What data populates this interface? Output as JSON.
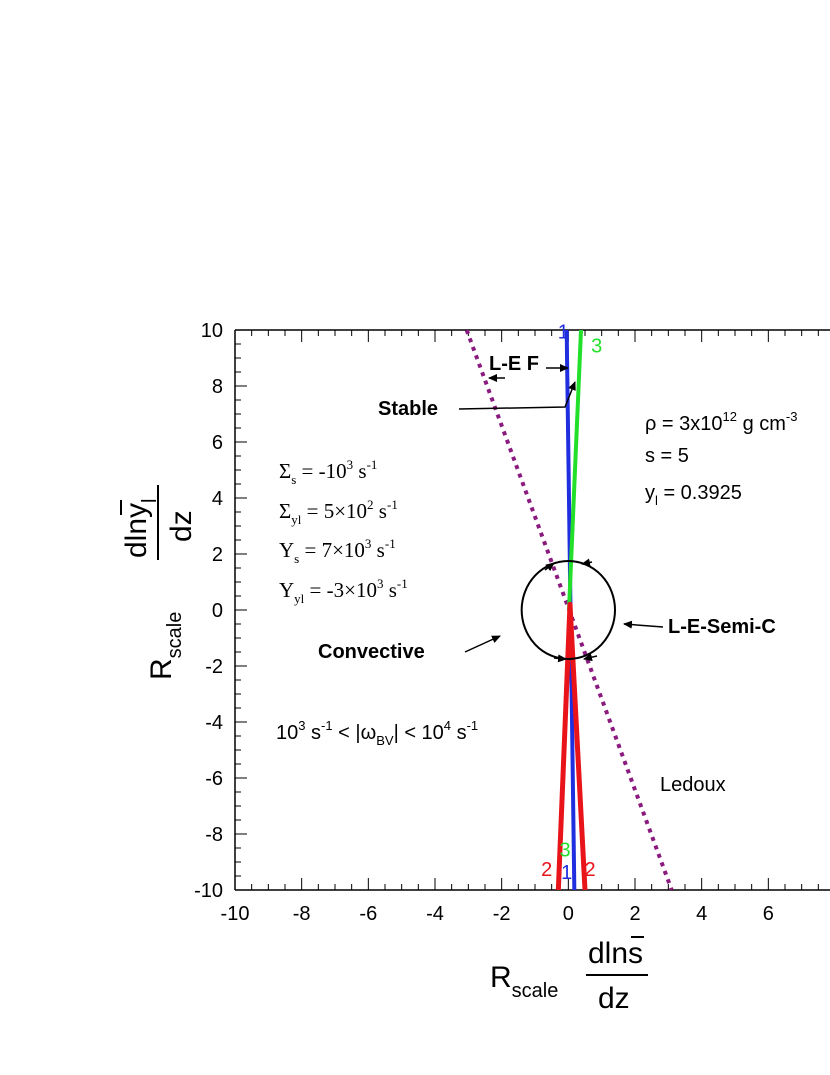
{
  "chart_data": {
    "type": "line",
    "xlim": [
      -10,
      8
    ],
    "ylim": [
      -10,
      10
    ],
    "x_ticks": [
      -10,
      -8,
      -6,
      -4,
      -2,
      0,
      2,
      4,
      6
    ],
    "y_ticks": [
      10,
      8,
      6,
      4,
      2,
      0,
      -2,
      -4,
      -6,
      -8,
      -10
    ],
    "xlabel": {
      "main": "R",
      "sub": "scale",
      "num": "dlns",
      "den": "dz"
    },
    "ylabel": {
      "main": "R",
      "sub": "scale",
      "num": "dlny",
      "num_sub": "l",
      "den": "dz"
    },
    "series": [
      {
        "id": "1",
        "color": "#1f2fe0",
        "x": [
          -0.05,
          0.18
        ],
        "y": [
          10,
          -10
        ],
        "width": 4
      },
      {
        "id": "2",
        "color": "#e8141a",
        "x": [
          -0.3,
          0.05,
          0.5
        ],
        "y": [
          -10,
          0.2,
          -10
        ],
        "width": 5
      },
      {
        "id": "3",
        "color": "#22e02a",
        "x": [
          0.02,
          0.38
        ],
        "y": [
          0.0,
          10
        ],
        "width": 4
      },
      {
        "id": "ledoux",
        "name": "Ledoux",
        "color": "#8b1a7f",
        "x": [
          -3.05,
          3.1
        ],
        "y": [
          10,
          -10
        ],
        "width": 4,
        "dash": true
      }
    ],
    "circle": {
      "cx": 0.0,
      "cy": 0.0,
      "r_x": 1.4,
      "r_y": 1.75
    },
    "curve_labels": [
      {
        "text": "1",
        "color": "#1f2fe0",
        "x": -0.15,
        "y": 9.7
      },
      {
        "text": "3",
        "color": "#22e02a",
        "x": 0.85,
        "y": 9.2
      },
      {
        "text": "2",
        "color": "#e8141a",
        "x": -0.65,
        "y": -9.5
      },
      {
        "text": "3",
        "color": "#22e02a",
        "x": -0.1,
        "y": -8.8
      },
      {
        "text": "1",
        "color": "#1f2fe0",
        "x": -0.05,
        "y": -9.6
      },
      {
        "text": "2",
        "color": "#e8141a",
        "x": 0.65,
        "y": -9.5
      }
    ],
    "annotations": {
      "le_f": "L-E F",
      "stable": "Stable",
      "convective": "Convective",
      "semi": "L-E-Semi-C",
      "ledoux": "Ledoux",
      "rho": {
        "pre": "ρ = 3x10",
        "exp": "12",
        "post": " g cm",
        "exp2": "-3"
      },
      "s": "s = 5",
      "yl": {
        "pre": "y",
        "sub": "l",
        "post": " = 0.3925"
      },
      "sigma_s": {
        "pre": "Σ",
        "sub": "s",
        "mid": " = -10",
        "exp": "3",
        "post": " s",
        "exp2": "-1"
      },
      "sigma_yl": {
        "pre": "Σ",
        "sub": "yl",
        "mid": " = 5×10",
        "exp": "2",
        "post": " s",
        "exp2": "-1"
      },
      "upsilon_s": {
        "pre": "Υ",
        "sub": "s",
        "mid": " = 7×10",
        "exp": "3",
        "post": " s",
        "exp2": "-1"
      },
      "upsilon_yl": {
        "pre": "Υ",
        "sub": "yl",
        "mid": " = -3×10",
        "exp": "3",
        "post": " s",
        "exp2": "-1"
      },
      "omega": {
        "a": "10",
        "a_exp": "3",
        "b": " s",
        "b_exp": "-1",
        "c": " < |ω",
        "c_sub": "BV",
        "d": "| < 10",
        "d_exp": "4",
        "e": " s",
        "e_exp": "-1"
      }
    }
  }
}
